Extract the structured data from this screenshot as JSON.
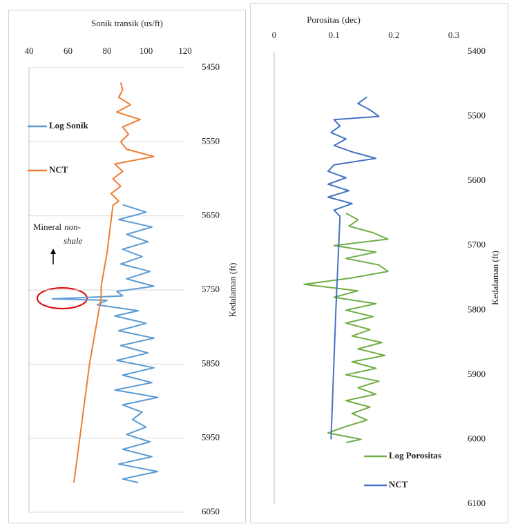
{
  "chart_data": [
    {
      "type": "line",
      "title": "Sonik transik (us/ft)",
      "y_label": "Kedalaman (ft)",
      "xlim": [
        40,
        120
      ],
      "xticks": [
        40,
        60,
        80,
        100,
        120
      ],
      "ylim": [
        6050,
        5450
      ],
      "yticks": [
        5450,
        5550,
        5650,
        5750,
        5850,
        5950,
        6050
      ],
      "grid": true,
      "annotation": {
        "text": "Mineral",
        "italic": [
          "non-",
          "shale"
        ]
      },
      "series": [
        {
          "name": "Log Sonik",
          "color": "#5b9bd5",
          "depths": [
            5635,
            5645,
            5655,
            5665,
            5675,
            5685,
            5695,
            5705,
            5715,
            5725,
            5735,
            5745,
            5752,
            5758,
            5762,
            5764,
            5770,
            5778,
            5785,
            5795,
            5805,
            5815,
            5825,
            5835,
            5845,
            5855,
            5865,
            5875,
            5885,
            5895,
            5905,
            5915,
            5925,
            5935,
            5945,
            5955,
            5965,
            5975,
            5985,
            5995,
            6005,
            6010
          ],
          "values": [
            88,
            100,
            86,
            103,
            90,
            101,
            88,
            98,
            87,
            102,
            90,
            104,
            85,
            88,
            52,
            80,
            75,
            96,
            84,
            100,
            86,
            104,
            87,
            101,
            85,
            104,
            88,
            103,
            84,
            106,
            88,
            98,
            93,
            100,
            90,
            102,
            88,
            103,
            86,
            106,
            88,
            96
          ]
        },
        {
          "name": "NCT",
          "color": "#ed7d31",
          "depths": [
            5470,
            5480,
            5490,
            5500,
            5510,
            5520,
            5530,
            5540,
            5550,
            5560,
            5570,
            5580,
            5590,
            5600,
            5610,
            5620,
            5630,
            5636,
            5700,
            5745,
            5760,
            5850,
            5950,
            6010
          ],
          "values": [
            87,
            88,
            86,
            92,
            85,
            97,
            88,
            91,
            87,
            90,
            104,
            84,
            88,
            83,
            87,
            82,
            86,
            83,
            80,
            77,
            77,
            71,
            66,
            63
          ]
        }
      ]
    },
    {
      "type": "line",
      "title": "Porositas (dec)",
      "y_label": "Kedalaman (ft)",
      "xlim": [
        0,
        0.3
      ],
      "xticks": [
        0,
        0.1,
        0.2,
        0.3
      ],
      "ylim": [
        6100,
        5400
      ],
      "yticks": [
        5400,
        5500,
        5600,
        5700,
        5800,
        5900,
        6000,
        6100
      ],
      "grid": false,
      "series": [
        {
          "name": "Log Porositas",
          "color": "#70ad47",
          "depths": [
            5650,
            5660,
            5670,
            5680,
            5690,
            5700,
            5710,
            5720,
            5730,
            5740,
            5750,
            5760,
            5770,
            5780,
            5790,
            5800,
            5810,
            5820,
            5830,
            5840,
            5850,
            5860,
            5870,
            5880,
            5890,
            5900,
            5910,
            5920,
            5930,
            5940,
            5950,
            5960,
            5970,
            5980,
            5990,
            6000,
            6005
          ],
          "values": [
            0.12,
            0.14,
            0.125,
            0.165,
            0.19,
            0.1,
            0.17,
            0.12,
            0.175,
            0.19,
            0.13,
            0.05,
            0.14,
            0.1,
            0.17,
            0.12,
            0.165,
            0.12,
            0.16,
            0.13,
            0.18,
            0.14,
            0.185,
            0.13,
            0.17,
            0.12,
            0.175,
            0.14,
            0.17,
            0.12,
            0.16,
            0.13,
            0.155,
            0.12,
            0.09,
            0.145,
            0.12
          ]
        },
        {
          "name": "NCT",
          "color": "#4472c4",
          "depths": [
            5470,
            5480,
            5490,
            5500,
            5505,
            5515,
            5525,
            5535,
            5545,
            5555,
            5565,
            5575,
            5585,
            5595,
            5605,
            5615,
            5625,
            5635,
            5645,
            5655,
            5800,
            6000
          ],
          "values": [
            0.155,
            0.14,
            0.16,
            0.175,
            0.1,
            0.11,
            0.095,
            0.12,
            0.1,
            0.13,
            0.17,
            0.1,
            0.09,
            0.12,
            0.09,
            0.125,
            0.09,
            0.13,
            0.1,
            0.11,
            0.103,
            0.095
          ]
        }
      ]
    }
  ]
}
